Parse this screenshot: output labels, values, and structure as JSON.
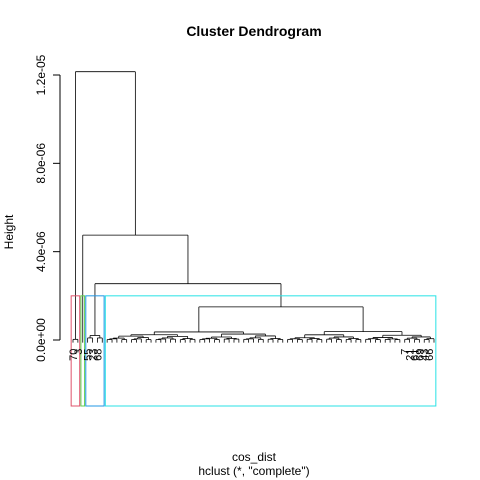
{
  "chart_data": {
    "type": "dendrogram",
    "title": "Cluster Dendrogram",
    "ylabel": "Height",
    "xlabel": "cos_dist",
    "subtitle": "hclust (*, \"complete\")",
    "ylim": [
      0,
      1.2e-05
    ],
    "yticks": [
      {
        "value": 0,
        "label": "0.0e+00"
      },
      {
        "value": 4e-06,
        "label": "4.0e-06"
      },
      {
        "value": 8e-06,
        "label": "8.0e-06"
      },
      {
        "value": 1.2e-05,
        "label": "1.2e-05"
      }
    ],
    "leaf_count": 75,
    "leaf_labels_visible": [
      "70",
      "3",
      "55",
      "23",
      "68",
      "7",
      "21",
      "61",
      "69",
      "43",
      "66"
    ],
    "merges": [
      {
        "height": 1.215e-05,
        "description": "root: leaves 1-2 vs rest"
      },
      {
        "height": 4.75e-06,
        "description": "leaf 3 vs right group"
      },
      {
        "height": 2.55e-06,
        "description": "leaves 4-7 vs main cluster"
      },
      {
        "height": 1.5e-06,
        "description": "main cluster split"
      },
      {
        "height": 7.5e-07,
        "description": "sub-cluster merges"
      }
    ],
    "rect_hclust_boxes": [
      {
        "cluster": 1,
        "leaves": [
          1,
          2
        ],
        "color": "#DF536B"
      },
      {
        "cluster": 2,
        "leaves": [
          3,
          3
        ],
        "color": "#61D04F"
      },
      {
        "cluster": 3,
        "leaves": [
          4,
          7
        ],
        "color": "#2297E6"
      },
      {
        "cluster": 4,
        "leaves": [
          8,
          75
        ],
        "color": "#28E2E5"
      }
    ],
    "box_cut_height": 2e-06
  }
}
